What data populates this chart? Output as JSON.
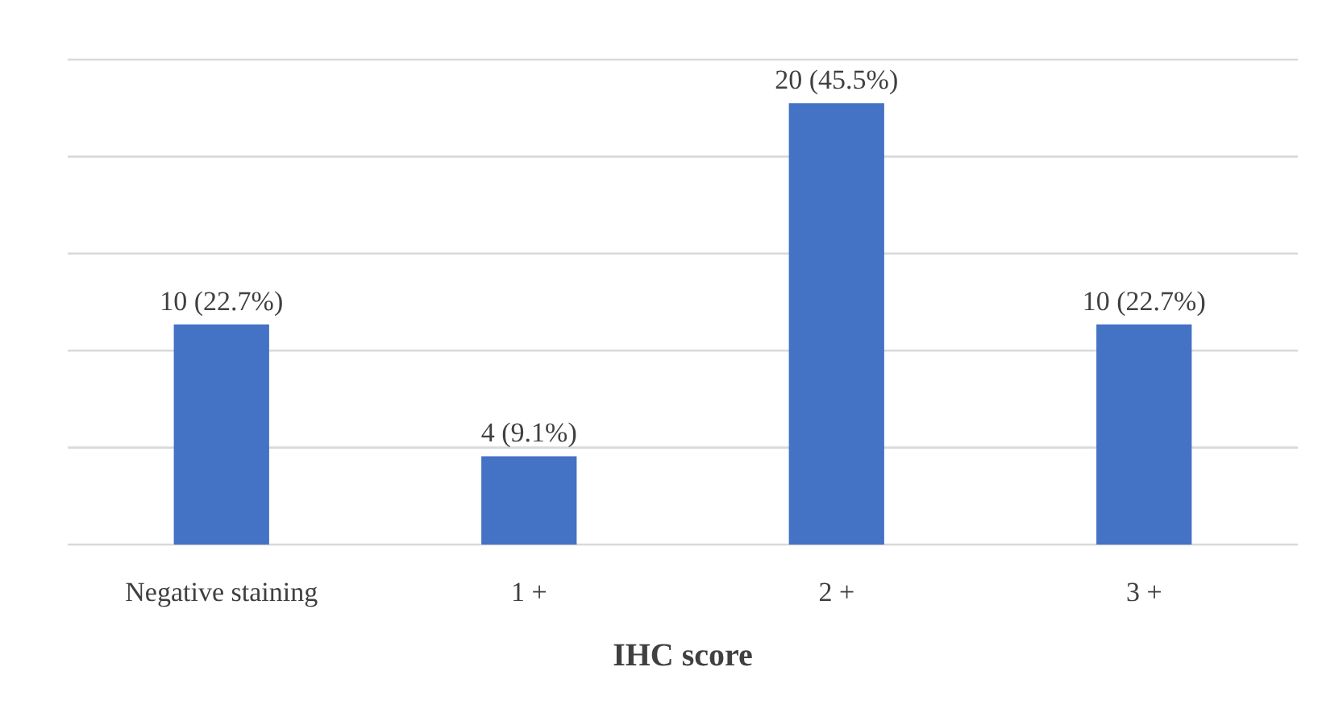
{
  "chart_data": {
    "type": "bar",
    "xlabel": "IHC score",
    "categories": [
      "Negative staining",
      "1 +",
      "2 +",
      "3 +"
    ],
    "values": [
      22.7,
      9.1,
      45.5,
      22.7
    ],
    "color": "#4472c4",
    "value_labels": [
      "10 (22.7%)",
      "4 (9.1%)",
      "20 (45.5%)",
      "10 (22.7%)"
    ],
    "ylim": [
      0,
      50
    ],
    "yticks": [
      {
        "value": 0,
        "label": null
      },
      {
        "value": 10,
        "label": null
      },
      {
        "value": 20,
        "label": null
      },
      {
        "value": 30,
        "label": null
      },
      {
        "value": 40,
        "label": null
      },
      {
        "value": 50,
        "label": null
      }
    ],
    "grid": true
  }
}
